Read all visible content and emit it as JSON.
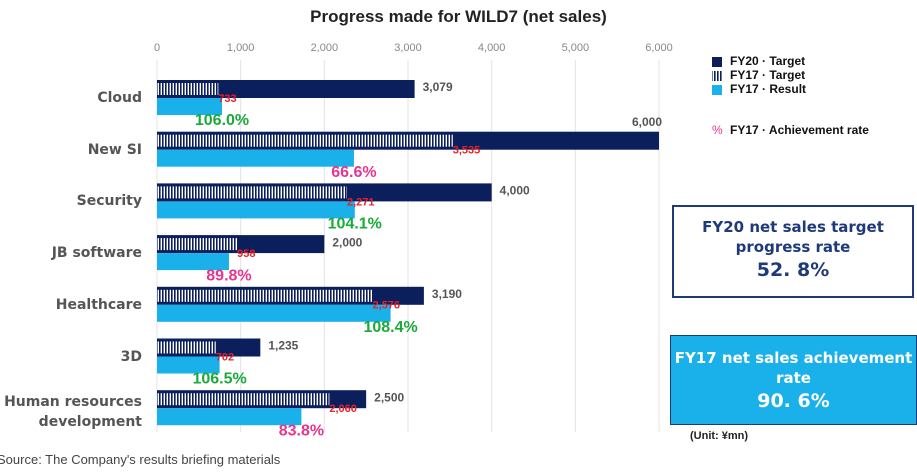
{
  "chart_data": {
    "type": "bar",
    "title": "Progress made for WILD7 (net sales)",
    "categories": [
      "Cloud",
      "New SI",
      "Security",
      "JB software",
      "Healthcare",
      "3D",
      "Human resources development"
    ],
    "series": [
      {
        "name": "FY20 · Target",
        "color": "#0b1f5c",
        "values": [
          3079,
          6000,
          4000,
          2000,
          3190,
          1235,
          2500
        ],
        "value_labels": [
          "3,079",
          "6,000",
          "4,000",
          "2,000",
          "3,190",
          "1,235",
          "2,500"
        ]
      },
      {
        "name": "FY17 · Target",
        "color": "#0b1f5c",
        "pattern": "stripes",
        "values": [
          733,
          3535,
          2271,
          958,
          2576,
          702,
          2060
        ],
        "value_labels": [
          "733",
          "3,535",
          "2,271",
          "958",
          "2,576",
          "702",
          "2,060"
        ],
        "label_color": "#e8202a"
      },
      {
        "name": "FY17 · Result",
        "color": "#1ab0ea",
        "values": [
          777,
          2354,
          2364,
          860,
          2792,
          748,
          1726
        ]
      }
    ],
    "rate": {
      "name": "FY17 · Achievement rate",
      "legend_symbol": "%",
      "legend_color": "#e8358d",
      "values": [
        106.0,
        66.6,
        104.1,
        89.8,
        108.4,
        106.5,
        83.8
      ],
      "value_labels": [
        "106.0%",
        "66.6%",
        "104.1%",
        "89.8%",
        "108.4%",
        "106.5%",
        "83.8%"
      ],
      "colors": [
        "#1aaa3a",
        "#e8358d",
        "#1aaa3a",
        "#e8358d",
        "#1aaa3a",
        "#1aaa3a",
        "#e8358d"
      ]
    },
    "xlim": [
      0,
      6000
    ],
    "xticks": [
      0,
      {
        "value": 1000,
        "label": "1,000"
      },
      {
        "value": 2000,
        "label": "2,000"
      },
      {
        "value": 3000,
        "label": "3,000"
      },
      {
        "value": 4000,
        "label": "4,000"
      },
      {
        "value": 5000,
        "label": "5,000"
      },
      {
        "value": 6000,
        "label": "6,000"
      }
    ],
    "grid": true,
    "legend": "upper right",
    "boxes": [
      {
        "text": "FY20 net sales target progress rate",
        "value": "52. 8%"
      },
      {
        "text": "FY17 net sales achievement rate",
        "value": "90. 6%"
      }
    ],
    "unit": "(Unit: ¥mn)",
    "source": "Source: The Company's results briefing materials"
  }
}
